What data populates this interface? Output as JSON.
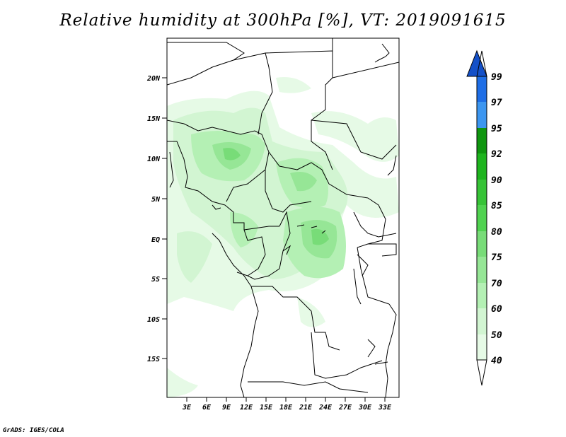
{
  "title": "Relative humidity at 300hPa [%], VT: 2019091615",
  "credit": "GrADS: IGES/COLA",
  "map": {
    "lat_labels": [
      "20N",
      "15N",
      "10N",
      "5N",
      "EQ",
      "5S",
      "10S",
      "15S"
    ],
    "lon_labels": [
      "3E",
      "6E",
      "9E",
      "12E",
      "15E",
      "18E",
      "21E",
      "24E",
      "27E",
      "30E",
      "33E"
    ]
  },
  "colorbar": {
    "labels": [
      "40",
      "50",
      "60",
      "70",
      "75",
      "80",
      "85",
      "90",
      "92",
      "95",
      "97",
      "99"
    ],
    "colors": {
      "c40_50": "#e6fae6",
      "c50_60": "#d2f5d2",
      "c60_70": "#b4f0b4",
      "c70_75": "#96e696",
      "c75_80": "#78dc78",
      "c80_85": "#50d250",
      "c85_90": "#37c337",
      "c90_92": "#1eb41e",
      "c92_95": "#0f960f",
      "c95_97": "#3c96f0",
      "c97_99": "#1e6ee6",
      "c99up": "#1450c8"
    }
  }
}
